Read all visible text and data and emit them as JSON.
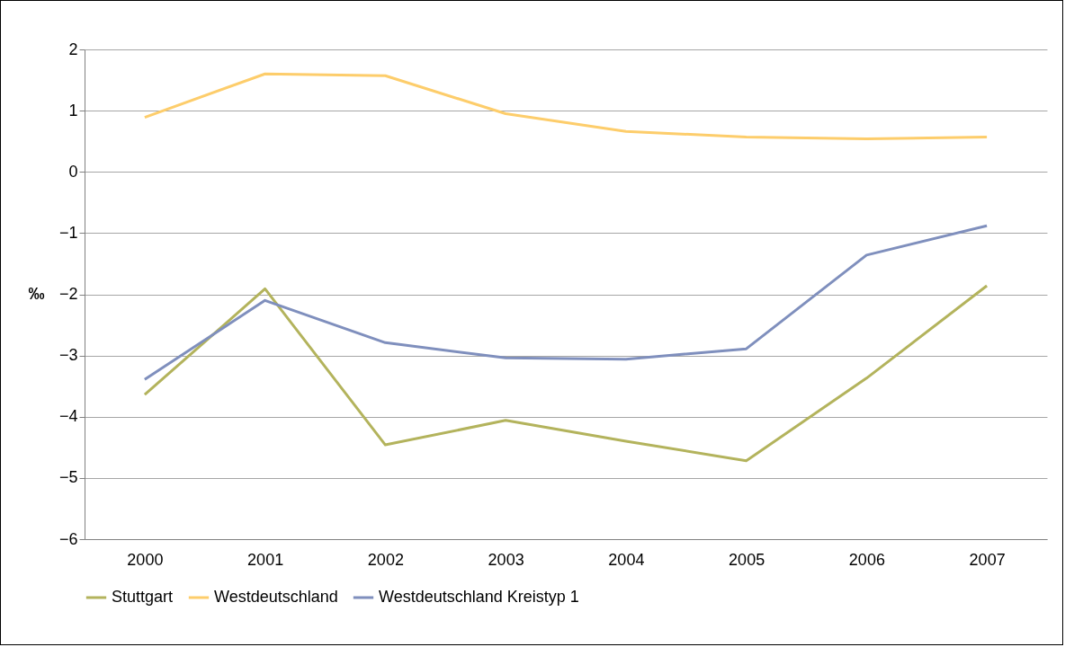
{
  "chart_data": {
    "type": "line",
    "ylabel": "‰",
    "categories": [
      "2000",
      "2001",
      "2002",
      "2003",
      "2004",
      "2005",
      "2006",
      "2007"
    ],
    "series": [
      {
        "name": "Stuttgart",
        "color": "#b3b35c",
        "values": [
          -3.64,
          -1.91,
          -4.46,
          -4.06,
          -4.4,
          -4.72,
          -3.37,
          -1.86
        ]
      },
      {
        "name": "Westdeutschland",
        "color": "#fdcd6b",
        "values": [
          0.89,
          1.6,
          1.57,
          0.95,
          0.66,
          0.57,
          0.54,
          0.57
        ]
      },
      {
        "name": "Westdeutschland Kreistyp 1",
        "color": "#7f8fbd",
        "values": [
          -3.39,
          -2.1,
          -2.79,
          -3.04,
          -3.06,
          -2.89,
          -1.36,
          -0.88
        ]
      }
    ],
    "ylim": [
      -6,
      2
    ],
    "yticks": [
      -6,
      -5,
      -4,
      -3,
      -2,
      -1,
      0,
      1,
      2
    ],
    "grid": "y",
    "legend": "bottom",
    "line_style": "solid"
  }
}
